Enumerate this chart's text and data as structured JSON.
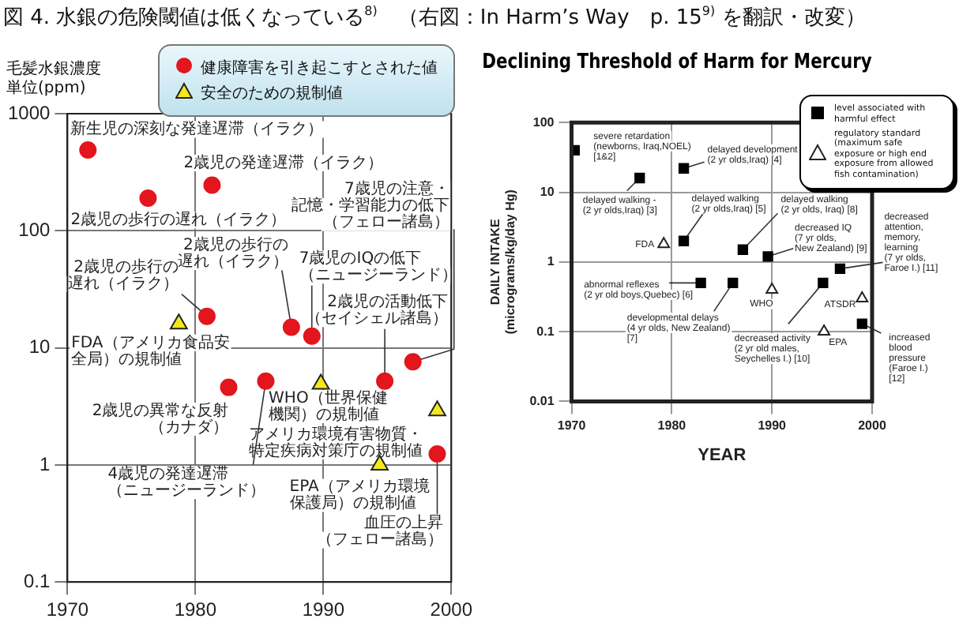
{
  "chart_data": [
    {
      "type": "scatter",
      "title": "図 4.  水銀の危険閾値は低くなっている$^{8)}$　（右図：In Harm’s Way　p. 15$^{9)}$ を翻訳・改変）",
      "ylabel": "毛髪水銀濃度単位(ppm)",
      "xlim": [
        1970,
        2000
      ],
      "xticks": [
        1970,
        1980,
        1990,
        2000
      ],
      "ylim": [
        0.1,
        1000
      ],
      "yticks": [
        0.1,
        1,
        10,
        100,
        1000
      ],
      "log": "y",
      "grid": true,
      "legend": "top right",
      "series": [
        {
          "name": "健康障害を引き起こすとされた値",
          "color": "#e3151d",
          "marker": "circle",
          "x": [
            1971.6,
            1976.3,
            1981.3,
            1980.9,
            1987.5,
            1989.1,
            1997,
            1994.8,
            1982.6,
            1985.5,
            1998.9
          ],
          "values": [
            490,
            190,
            245,
            18.6,
            15,
            12.6,
            7.6,
            5.2,
            4.6,
            5.2,
            1.24
          ]
        },
        {
          "name": "安全のための規制値",
          "color": "#f4e81c",
          "marker": "triangle",
          "x": [
            1978.7,
            1989.8,
            1998.9,
            1994.4
          ],
          "values": [
            16,
            4.9,
            2.9,
            1.0
          ]
        }
      ],
      "annotations": [
        {
          "text": "新生児の深刻な発達遅滞（イラク）",
          "x": 1971.6,
          "y": 490
        },
        {
          "text": "2歳児の歩行の遅れ（イラク）",
          "x": 1976.3,
          "y": 190
        },
        {
          "text": "2歳児の発達遅滞（イラク）",
          "x": 1981.3,
          "y": 245
        },
        {
          "text": "2歳児の歩行の遅れ（イラク）",
          "x": 1980.9,
          "y": 18.6
        },
        {
          "text": "2歳児の歩行の遅れ（イラク）",
          "x": 1987.5,
          "y": 15
        },
        {
          "text": "7歳児のIQの低下（ニュージーランド）",
          "x": 1989.1,
          "y": 12.6
        },
        {
          "text": "7歳児の注意・記憶・学習能力の低下（フェロー諸島）",
          "x": 1997,
          "y": 7.6
        },
        {
          "text": "2歳児の活動低下（セイシェル諸島）",
          "x": 1994.8,
          "y": 5.2
        },
        {
          "text": "2歳児の異常な反射（カナダ）",
          "x": 1982.6,
          "y": 4.6
        },
        {
          "text": "4歳児の発達遅滞（ニュージーランド）",
          "x": 1985.5,
          "y": 5.2
        },
        {
          "text": "血圧の上昇（フェロー諸島）",
          "x": 1998.9,
          "y": 1.24
        },
        {
          "text": "FDA（アメリカ食品安全局）の規制値",
          "x": 1978.7,
          "y": 16
        },
        {
          "text": "WHO（世界保健機関）の規制値",
          "x": 1989.8,
          "y": 4.9
        },
        {
          "text": "アメリカ環境有害物質・特定疾病対策庁の規制値",
          "x": 1998.9,
          "y": 2.9
        },
        {
          "text": "EPA（アメリカ環境保護局）の規制値",
          "x": 1994.4,
          "y": 1.0
        }
      ]
    },
    {
      "type": "scatter",
      "title": "Declining Threshold of Harm for Mercury",
      "xlabel": "YEAR",
      "ylabel": "DAILY INTAKE\n(micrograms/kg/day Hg)",
      "xlim": [
        1970,
        2000
      ],
      "xticks": [
        1970,
        1980,
        1990,
        2000
      ],
      "ylim": [
        0.01,
        100
      ],
      "yticks": [
        0.01,
        0.1,
        1,
        10,
        100
      ],
      "log": "y",
      "grid": true,
      "legend": "top right",
      "series": [
        {
          "name": "level associated with harmful effect",
          "color": "#000000",
          "marker": "square",
          "x": [
            1970.3,
            1976.8,
            1981.2,
            1981.2,
            1987.1,
            1989.6,
            1996.8,
            1982.9,
            1986.1,
            1995.1,
            1999
          ],
          "values": [
            40,
            16,
            22,
            2.0,
            1.5,
            1.2,
            0.8,
            0.5,
            0.5,
            0.5,
            0.13
          ]
        },
        {
          "name": "regulatory standard (maximum safe exposure or high end exposure from allowed fish contamination)",
          "color": "#ffffff",
          "marker": "triangle",
          "x": [
            1979.2,
            1990,
            1999,
            1995.2
          ],
          "values": [
            1.8,
            0.4,
            0.3,
            0.1
          ]
        }
      ],
      "annotations": [
        {
          "text": "severe retardation\n(newborns, Iraq,NOEL)\n[1&2]",
          "x": 1970.3,
          "y": 40
        },
        {
          "text": "delayed walking -\n(2 yr olds,Iraq) [3]",
          "x": 1976.8,
          "y": 16
        },
        {
          "text": "delayed development\n(2 yr olds,Iraq) [4]",
          "x": 1981.2,
          "y": 22
        },
        {
          "text": "delayed walking\n(2 yr olds,Iraq) [5]",
          "x": 1981.2,
          "y": 2.0
        },
        {
          "text": "delayed walking\n(2 yr olds, Iraq) [8]",
          "x": 1987.1,
          "y": 1.5
        },
        {
          "text": "decreased IQ\n(7 yr olds,\nNew Zealand) [9]",
          "x": 1989.6,
          "y": 1.2
        },
        {
          "text": "decreased\nattention,\nmemory,\nlearning\n(7 yr olds,\nFaroe I.) [11]",
          "x": 1996.8,
          "y": 0.8
        },
        {
          "text": "abnormal reflexes\n(2 yr old boys,Quebec) [6]",
          "x": 1982.9,
          "y": 0.5
        },
        {
          "text": "developmental delays\n(4 yr olds, New Zealand)\n[7]",
          "x": 1986.1,
          "y": 0.5
        },
        {
          "text": "decreased activity\n(2 yr old males,\nSeychelles I.) [10]",
          "x": 1995.1,
          "y": 0.5
        },
        {
          "text": "increased\nblood\npressure\n(Faroe I.)\n[12]",
          "x": 1999,
          "y": 0.13
        },
        {
          "text": "FDA",
          "x": 1979.2,
          "y": 1.8
        },
        {
          "text": "WHO",
          "x": 1990,
          "y": 0.4
        },
        {
          "text": "ATSDR",
          "x": 1999,
          "y": 0.3
        },
        {
          "text": "EPA",
          "x": 1995.2,
          "y": 0.1
        }
      ]
    }
  ]
}
